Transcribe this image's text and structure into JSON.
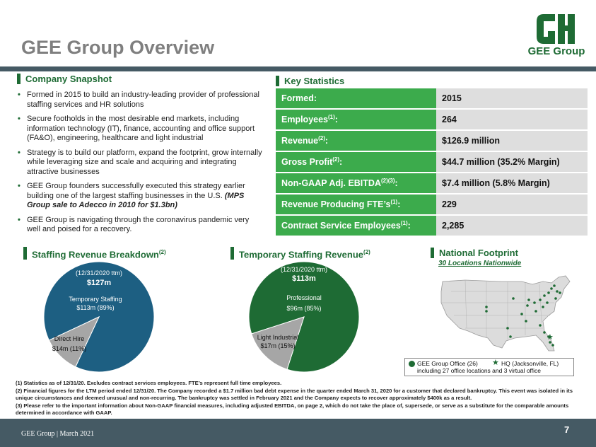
{
  "header": {
    "title": "GEE Group Overview",
    "logo_text": "GEE Group"
  },
  "snapshot": {
    "heading": "Company Snapshot",
    "bullets": [
      "Formed in 2015  to build an industry-leading provider of professional staffing services and HR solutions",
      "Secure footholds in the most desirable end markets, including information technology (IT),  finance, accounting and office support (FA&O), engineering, healthcare and light industrial",
      "Strategy is to build our platform, expand the footprint, grow internally while leveraging size and scale and acquiring and integrating attractive businesses",
      "GEE Group founders successfully executed this strategy earlier building one of the largest staffing businesses in the U.S.",
      "GEE Group is navigating through the coronavirus pandemic very well and poised for a recovery."
    ],
    "bullet4_emphasis": "(MPS Group sale to Adecco in 2010 for $1.3bn)"
  },
  "key_stats": {
    "heading": "Key Statistics",
    "rows": [
      {
        "label": "Formed:",
        "sup": "",
        "value": "2015"
      },
      {
        "label": "Employees",
        "sup": "(1)",
        "value": "264"
      },
      {
        "label": "Revenue",
        "sup": "(2)",
        "value": "$126.9 million"
      },
      {
        "label": "Gross Profit",
        "sup": "(2)",
        "value": "$44.7 million (35.2% Margin)"
      },
      {
        "label": "Non-GAAP Adj. EBITDA",
        "sup": "(2)(3)",
        "value": "$7.4 million (5.8% Margin)"
      },
      {
        "label": "Revenue Producing FTE’s",
        "sup": "(1)",
        "value": "229"
      },
      {
        "label": "Contract Service Employees",
        "sup": "(1)",
        "value": "2,285"
      }
    ]
  },
  "staffing_breakdown": {
    "heading": "Staffing Revenue Breakdown",
    "heading_sup": "(2)",
    "period": "(12/31/2020 ttm)",
    "total": "$127m",
    "colors": [
      "#1d5f82",
      "#a6a6a6"
    ],
    "slice_labels": [
      {
        "name": "Temporary  Staffing",
        "value": "$113m (89%)"
      },
      {
        "name": "Direct Hire",
        "value": "$14m (11%)"
      }
    ]
  },
  "temp_revenue": {
    "heading": "Temporary Staffing Revenue",
    "heading_sup": "(2)",
    "period": "(12/31/2020 ttm)",
    "total": "$113m",
    "colors": [
      "#1e6b34",
      "#a6a6a6"
    ],
    "slice_labels": [
      {
        "name": "Professional",
        "value": "$96m (85%)"
      },
      {
        "name": "Light  Industrial",
        "value": "$17m (15%)"
      }
    ]
  },
  "chart_data": [
    {
      "type": "pie",
      "title": "Staffing Revenue Breakdown",
      "categories": [
        "Temporary Staffing",
        "Direct Hire"
      ],
      "values": [
        113,
        14
      ],
      "percents": [
        89,
        11
      ],
      "units": "$m"
    },
    {
      "type": "pie",
      "title": "Temporary Staffing Revenue",
      "categories": [
        "Professional",
        "Light Industrial"
      ],
      "values": [
        96,
        17
      ],
      "percents": [
        85,
        15
      ],
      "units": "$m"
    }
  ],
  "footprint": {
    "heading": "National Footprint",
    "subheading": "30 Locations Nationwide",
    "legend_office": "GEE Group Office (26)",
    "legend_hq": "HQ (Jacksonville, FL)",
    "legend_note": "including 27 office locations and 3 virtual office",
    "office_color": "#1e6b34"
  },
  "footnotes": [
    "(1) Statistics as of 12/31/20. Excludes contract services employees. FTE’s represent full time employees.",
    "(2) Financial figures for the LTM period ended 12/31/20. The Company recorded a $1.7 million bad debt expense in the quarter ended March 31, 2020 for a customer that declared bankruptcy. This event was isolated in its unique circumstances and deemed unusual and non-recurring. The bankruptcy was settled in February 2021 and the Company expects to recover approximately $400k as a result.",
    "(3) Please refer to the important information about Non-GAAP financial measures, including adjusted EBITDA, on page 2, which do not take the place of, supersede, or serve as a substitute for the comparable amounts determined in accordance with GAAP."
  ],
  "footer": {
    "left": "GEE Group | March 2021",
    "page": "7"
  }
}
